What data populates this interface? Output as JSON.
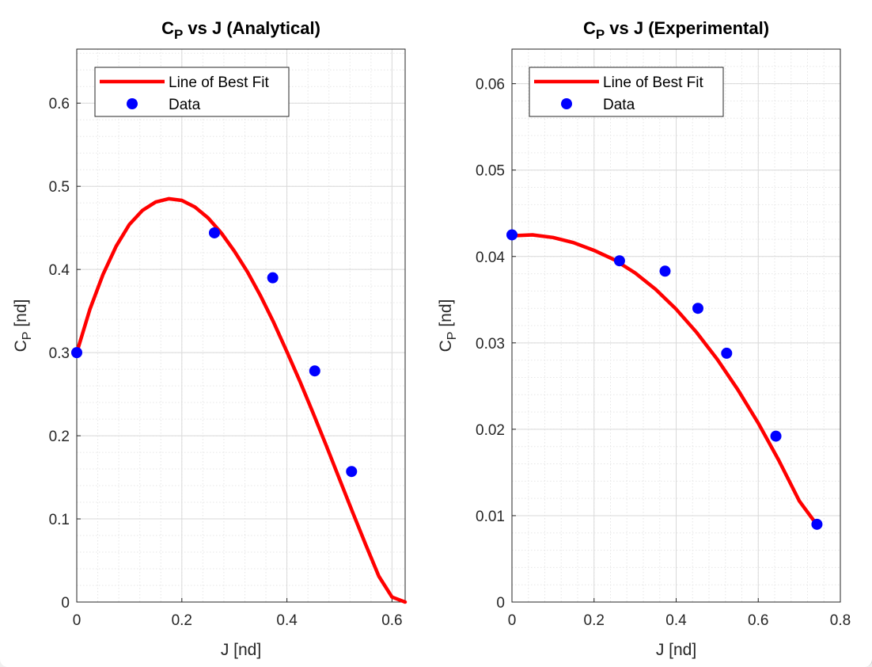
{
  "chart_data": [
    {
      "type": "scatter",
      "title": "C_P vs J (Analytical)",
      "title_parts": {
        "main": "C",
        "sub": "P",
        "rest": " vs J (Analytical)"
      },
      "xlabel": "J [nd]",
      "ylabel": "C_P [nd]",
      "ylabel_parts": {
        "main": "C",
        "sub": "P",
        "rest": " [nd]"
      },
      "xlim": [
        0,
        0.625
      ],
      "ylim": [
        0,
        0.665
      ],
      "xticks": [
        0,
        0.2,
        0.4,
        0.6
      ],
      "yticks": [
        0,
        0.1,
        0.2,
        0.3,
        0.4,
        0.5,
        0.6
      ],
      "xtick_labels": [
        "0",
        "0.2",
        "0.4",
        "0.6"
      ],
      "ytick_labels": [
        "0",
        "0.1",
        "0.2",
        "0.3",
        "0.4",
        "0.5",
        "0.6"
      ],
      "grid": true,
      "minor_grid": true,
      "legend": {
        "position": "top-left",
        "entries": [
          "Line of Best Fit",
          "Data"
        ]
      },
      "series": [
        {
          "name": "Data",
          "kind": "markers",
          "color": "#0000ff",
          "x": [
            0,
            0.262,
            0.373,
            0.453,
            0.523
          ],
          "y": [
            0.3,
            0.444,
            0.39,
            0.278,
            0.157
          ]
        },
        {
          "name": "Line of Best Fit",
          "kind": "line",
          "color": "#ff0000",
          "x": [
            0,
            0.025,
            0.05,
            0.075,
            0.1,
            0.125,
            0.15,
            0.175,
            0.2,
            0.225,
            0.25,
            0.275,
            0.3,
            0.325,
            0.35,
            0.375,
            0.4,
            0.425,
            0.45,
            0.475,
            0.5,
            0.525,
            0.55,
            0.575,
            0.6,
            0.625
          ],
          "y": [
            0.3,
            0.352,
            0.394,
            0.428,
            0.454,
            0.471,
            0.481,
            0.485,
            0.483,
            0.475,
            0.462,
            0.444,
            0.422,
            0.397,
            0.368,
            0.336,
            0.301,
            0.265,
            0.227,
            0.188,
            0.148,
            0.108,
            0.069,
            0.031,
            0.006,
            0.0
          ]
        }
      ]
    },
    {
      "type": "scatter",
      "title": "C_P vs J (Experimental)",
      "title_parts": {
        "main": "C",
        "sub": "P",
        "rest": " vs J (Experimental)"
      },
      "xlabel": "J [nd]",
      "ylabel": "C_P [nd]",
      "ylabel_parts": {
        "main": "C",
        "sub": "P",
        "rest": " [nd]"
      },
      "xlim": [
        0,
        0.8
      ],
      "ylim": [
        0,
        0.064
      ],
      "xticks": [
        0,
        0.2,
        0.4,
        0.6,
        0.8
      ],
      "yticks": [
        0,
        0.01,
        0.02,
        0.03,
        0.04,
        0.05,
        0.06
      ],
      "xtick_labels": [
        "0",
        "0.2",
        "0.4",
        "0.6",
        "0.8"
      ],
      "ytick_labels": [
        "0",
        "0.01",
        "0.02",
        "0.03",
        "0.04",
        "0.05",
        "0.06"
      ],
      "grid": true,
      "minor_grid": true,
      "legend": {
        "position": "top-left",
        "entries": [
          "Line of Best Fit",
          "Data"
        ]
      },
      "series": [
        {
          "name": "Data",
          "kind": "markers",
          "color": "#0000ff",
          "x": [
            0,
            0.262,
            0.373,
            0.453,
            0.523,
            0.643,
            0.743
          ],
          "y": [
            0.0425,
            0.0395,
            0.0383,
            0.034,
            0.0288,
            0.0192,
            0.009
          ]
        },
        {
          "name": "Line of Best Fit",
          "kind": "line",
          "color": "#ff0000",
          "x": [
            0,
            0.05,
            0.1,
            0.15,
            0.2,
            0.25,
            0.3,
            0.35,
            0.4,
            0.45,
            0.5,
            0.55,
            0.6,
            0.65,
            0.7,
            0.745
          ],
          "y": [
            0.0424,
            0.0425,
            0.0422,
            0.0416,
            0.0407,
            0.0396,
            0.0381,
            0.0362,
            0.0339,
            0.0312,
            0.0281,
            0.0246,
            0.0207,
            0.0164,
            0.0117,
            0.0088
          ]
        }
      ]
    }
  ]
}
